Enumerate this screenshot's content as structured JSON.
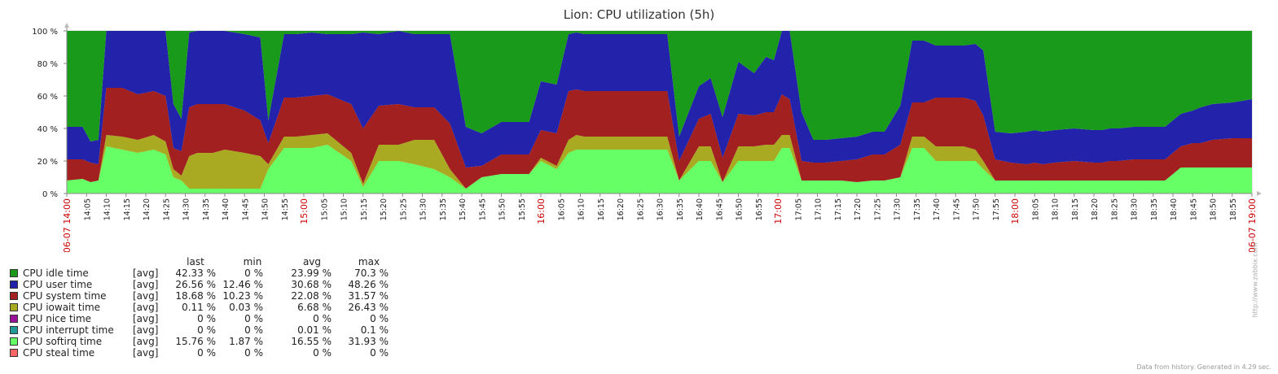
{
  "chart_data": {
    "type": "area",
    "title": "Lion: CPU utilization (5h)",
    "stacked": true,
    "ylim": [
      0,
      100
    ],
    "y_ticks": [
      "0 %",
      "20 %",
      "40 %",
      "60 %",
      "80 %",
      "100 %"
    ],
    "x_range": [
      "06-07 14:00",
      "06-07 19:00"
    ],
    "x_ticks": [
      "06-07 14:00",
      "14:05",
      "14:10",
      "14:15",
      "14:20",
      "14:25",
      "14:30",
      "14:35",
      "14:40",
      "14:45",
      "14:50",
      "14:55",
      "15:00",
      "15:05",
      "15:10",
      "15:15",
      "15:20",
      "15:25",
      "15:30",
      "15:35",
      "15:40",
      "15:45",
      "15:50",
      "15:55",
      "16:00",
      "16:05",
      "16:10",
      "16:15",
      "16:20",
      "16:25",
      "16:30",
      "16:35",
      "16:40",
      "16:45",
      "16:50",
      "16:55",
      "17:00",
      "17:05",
      "17:10",
      "17:15",
      "17:20",
      "17:25",
      "17:30",
      "17:35",
      "17:40",
      "17:45",
      "17:50",
      "17:55",
      "18:00",
      "18:05",
      "18:10",
      "18:15",
      "18:20",
      "18:25",
      "18:30",
      "18:35",
      "18:40",
      "18:45",
      "18:50",
      "18:55",
      "06-07 19:00"
    ],
    "major_ticks": [
      "06-07 14:00",
      "15:00",
      "16:00",
      "17:00",
      "18:00",
      "06-07 19:00"
    ],
    "x_minutes": [
      0,
      4,
      6,
      8,
      10,
      14,
      18,
      22,
      25,
      27,
      29,
      31,
      33,
      37,
      40,
      45,
      49,
      51,
      55,
      58,
      62,
      66,
      72,
      75,
      79,
      84,
      88,
      93,
      97,
      101,
      105,
      110,
      114,
      117,
      120,
      124,
      127,
      129,
      131,
      135,
      140,
      145,
      148,
      150,
      152,
      155,
      160,
      163,
      166,
      170,
      174,
      177,
      179,
      181,
      183,
      186,
      189,
      192,
      196,
      200,
      204,
      207,
      211,
      214,
      217,
      220,
      223,
      227,
      230,
      232,
      235,
      239,
      243,
      245,
      247,
      250,
      255,
      260,
      262,
      264,
      266,
      270,
      275,
      278,
      282,
      285,
      287,
      290,
      295,
      300
    ],
    "series": [
      {
        "name": "CPU softirq time",
        "color": "#66ff66",
        "values": [
          8,
          9,
          7,
          8,
          29,
          27,
          25,
          27,
          24,
          10,
          8,
          3,
          3,
          3,
          3,
          3,
          3,
          15,
          28,
          28,
          28,
          30,
          20,
          4,
          20,
          20,
          18,
          15,
          10,
          3,
          10,
          12,
          12,
          12,
          20,
          15,
          25,
          27,
          27,
          27,
          27,
          27,
          27,
          27,
          27,
          8,
          20,
          20,
          7,
          20,
          20,
          20,
          20,
          28,
          28,
          8,
          8,
          8,
          8,
          7,
          8,
          8,
          10,
          28,
          28,
          20,
          20,
          20,
          20,
          15,
          8,
          8,
          8,
          8,
          8,
          8,
          8,
          8,
          8,
          8,
          8,
          8,
          8,
          8,
          16,
          16,
          16,
          16,
          16,
          16
        ]
      },
      {
        "name": "CPU iowait time",
        "color": "#aaaa22",
        "values": [
          0,
          0,
          0,
          0,
          7,
          8,
          8,
          9,
          8,
          5,
          3,
          20,
          22,
          22,
          24,
          22,
          20,
          3,
          7,
          7,
          8,
          7,
          5,
          2,
          10,
          10,
          15,
          18,
          5,
          0,
          0,
          0,
          0,
          0,
          2,
          2,
          8,
          9,
          8,
          8,
          8,
          8,
          8,
          8,
          8,
          0,
          9,
          9,
          0,
          9,
          9,
          10,
          10,
          8,
          8,
          0,
          0,
          0,
          0,
          0,
          0,
          0,
          0,
          7,
          7,
          9,
          9,
          9,
          7,
          5,
          0,
          0,
          0,
          0,
          0,
          0,
          0,
          0,
          0,
          0,
          0,
          0,
          0,
          0,
          0,
          0,
          0,
          0,
          0,
          0
        ]
      },
      {
        "name": "CPU system time",
        "color": "#a22020",
        "values": [
          13,
          12,
          12,
          10,
          29,
          30,
          28,
          27,
          28,
          13,
          15,
          30,
          30,
          30,
          28,
          26,
          22,
          13,
          24,
          24,
          24,
          24,
          30,
          34,
          24,
          25,
          20,
          20,
          28,
          13,
          7,
          12,
          12,
          12,
          17,
          20,
          30,
          28,
          28,
          28,
          28,
          28,
          28,
          28,
          28,
          12,
          17,
          20,
          15,
          20,
          19,
          20,
          20,
          25,
          22,
          12,
          11,
          11,
          12,
          14,
          16,
          16,
          20,
          21,
          21,
          30,
          30,
          30,
          30,
          28,
          13,
          11,
          10,
          11,
          10,
          11,
          12,
          11,
          11,
          12,
          12,
          13,
          13,
          13,
          13,
          15,
          15,
          17,
          18,
          18
        ]
      },
      {
        "name": "CPU user time",
        "color": "#2222aa",
        "values": [
          20,
          20,
          13,
          15,
          35,
          35,
          39,
          37,
          40,
          27,
          20,
          46,
          45,
          45,
          45,
          47,
          51,
          14,
          39,
          39,
          39,
          37,
          43,
          59,
          44,
          45,
          45,
          45,
          55,
          25,
          20,
          20,
          20,
          20,
          30,
          30,
          35,
          35,
          35,
          35,
          35,
          35,
          35,
          35,
          35,
          15,
          20,
          22,
          25,
          32,
          26,
          34,
          32,
          39,
          43,
          30,
          14,
          14,
          14,
          14,
          14,
          14,
          24,
          38,
          38,
          32,
          32,
          32,
          35,
          40,
          17,
          18,
          20,
          20,
          20,
          20,
          20,
          20,
          20,
          20,
          20,
          20,
          20,
          20,
          20,
          20,
          22,
          22,
          22,
          24
        ]
      },
      {
        "name": "CPU idle time",
        "color": "#1a9a1a",
        "values": [
          59,
          59,
          68,
          67,
          0,
          0,
          0,
          0,
          0,
          45,
          54,
          1,
          0,
          0,
          0,
          2,
          4,
          55,
          2,
          2,
          1,
          2,
          2,
          1,
          2,
          0,
          2,
          2,
          2,
          59,
          63,
          56,
          56,
          56,
          31,
          33,
          2,
          1,
          2,
          2,
          2,
          2,
          2,
          2,
          2,
          65,
          34,
          29,
          53,
          19,
          26,
          16,
          18,
          0,
          0,
          50,
          67,
          67,
          66,
          69,
          62,
          62,
          46,
          6,
          6,
          9,
          9,
          9,
          8,
          12,
          62,
          63,
          62,
          61,
          62,
          61,
          60,
          61,
          61,
          60,
          60,
          59,
          59,
          59,
          51,
          49,
          47,
          45,
          44,
          42
        ]
      }
    ],
    "legend": {
      "headers": [
        "last",
        "min",
        "avg",
        "max"
      ],
      "rows": [
        {
          "name": "CPU idle time",
          "color": "#1a9a1a",
          "agg": "[avg]",
          "last": "42.33 %",
          "min": "0 %",
          "avg": "23.99 %",
          "max": "70.3 %"
        },
        {
          "name": "CPU user time",
          "color": "#2222aa",
          "agg": "[avg]",
          "last": "26.56 %",
          "min": "12.46 %",
          "avg": "30.68 %",
          "max": "48.26 %"
        },
        {
          "name": "CPU system time",
          "color": "#a22020",
          "agg": "[avg]",
          "last": "18.68 %",
          "min": "10.23 %",
          "avg": "22.08 %",
          "max": "31.57 %"
        },
        {
          "name": "CPU iowait time",
          "color": "#aaaa22",
          "agg": "[avg]",
          "last": "0.11 %",
          "min": "0.03 %",
          "avg": "6.68 %",
          "max": "26.43 %"
        },
        {
          "name": "CPU nice time",
          "color": "#991199",
          "agg": "[avg]",
          "last": "0 %",
          "min": "0 %",
          "avg": "0 %",
          "max": "0 %"
        },
        {
          "name": "CPU interrupt time",
          "color": "#229999",
          "agg": "[avg]",
          "last": "0 %",
          "min": "0 %",
          "avg": "0.01 %",
          "max": "0.1 %"
        },
        {
          "name": "CPU softirq time",
          "color": "#66ff66",
          "agg": "[avg]",
          "last": "15.76 %",
          "min": "1.87 %",
          "avg": "16.55 %",
          "max": "31.93 %"
        },
        {
          "name": "CPU steal time",
          "color": "#ff6666",
          "agg": "[avg]",
          "last": "0 %",
          "min": "0 %",
          "avg": "0 %",
          "max": "0 %"
        }
      ]
    }
  },
  "footer": "Data from history. Generated in 4.29 sec.",
  "side_text": "http://www.zabbix.com"
}
